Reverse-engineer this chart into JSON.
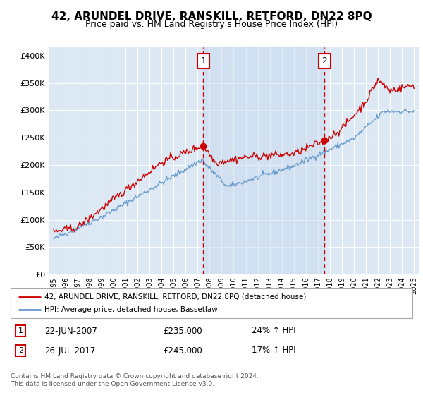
{
  "title": "42, ARUNDEL DRIVE, RANSKILL, RETFORD, DN22 8PQ",
  "subtitle": "Price paid vs. HM Land Registry's House Price Index (HPI)",
  "background_color": "#ffffff",
  "plot_bg_color": "#dce9f5",
  "y_ticks": [
    0,
    50000,
    100000,
    150000,
    200000,
    250000,
    300000,
    350000,
    400000
  ],
  "y_tick_labels": [
    "£0",
    "£50K",
    "£100K",
    "£150K",
    "£200K",
    "£250K",
    "£300K",
    "£350K",
    "£400K"
  ],
  "ylim": [
    0,
    415000
  ],
  "x_start_year": 1995,
  "x_end_year": 2025,
  "sale1_date": "22-JUN-2007",
  "sale1_price": 235000,
  "sale1_pct": "24%",
  "sale1_label": "1",
  "sale1_x": 2007.47,
  "sale2_date": "26-JUL-2017",
  "sale2_price": 245000,
  "sale2_pct": "17%",
  "sale2_label": "2",
  "sale2_x": 2017.56,
  "legend_line1": "42, ARUNDEL DRIVE, RANSKILL, RETFORD, DN22 8PQ (detached house)",
  "legend_line2": "HPI: Average price, detached house, Bassetlaw",
  "footer": "Contains HM Land Registry data © Crown copyright and database right 2024.\nThis data is licensed under the Open Government Licence v3.0.",
  "sale_color": "#cc0000",
  "hpi_color": "#6699cc",
  "vline_color": "#cc0000",
  "grid_color": "#ffffff",
  "shade_color": "#c8d8ec"
}
